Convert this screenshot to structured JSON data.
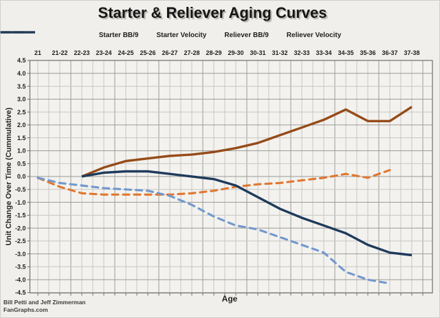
{
  "title": "Starter & Reliever Aging Curves",
  "footer": {
    "line1": "Bill Petti and Jeff Zimmerman",
    "line2": "FanGraphs.com"
  },
  "chart_data": {
    "type": "line",
    "title": "Starter & Reliever Aging Curves",
    "xlabel": "Age",
    "ylabel": "Unit Change Over Time (Cummulative)",
    "ylim": [
      -4.5,
      4.5
    ],
    "ytick_step": 0.5,
    "yticks": [
      4.5,
      4.0,
      3.5,
      3.0,
      2.5,
      2.0,
      1.5,
      1.0,
      0.5,
      0.0,
      -0.5,
      -1.0,
      -1.5,
      -2.0,
      -2.5,
      -3.0,
      -3.5,
      -4.0,
      -4.5
    ],
    "grid": true,
    "legend_position": "top",
    "x_labels_position": "top",
    "categories": [
      "21",
      "21-22",
      "22-23",
      "23-24",
      "24-25",
      "25-26",
      "26-27",
      "27-28",
      "28-29",
      "29-30",
      "30-31",
      "31-32",
      "32-33",
      "33-34",
      "34-35",
      "35-36",
      "36-37",
      "37-38"
    ],
    "series": [
      {
        "key": "starter-bb9",
        "name": "Starter BB/9",
        "style": "dashed",
        "color": "#E2762E",
        "values": [
          -0.05,
          -0.4,
          -0.65,
          -0.7,
          -0.7,
          -0.7,
          -0.7,
          -0.65,
          -0.55,
          -0.4,
          -0.3,
          -0.25,
          -0.15,
          -0.05,
          0.1,
          -0.05,
          0.25,
          null
        ]
      },
      {
        "key": "starter-velocity",
        "name": "Starter Velocity",
        "style": "dashed",
        "color": "#7297CE",
        "values": [
          -0.05,
          -0.25,
          -0.35,
          -0.45,
          -0.5,
          -0.55,
          -0.75,
          -1.1,
          -1.55,
          -1.9,
          -2.05,
          -2.35,
          -2.65,
          -2.95,
          -3.7,
          -4.0,
          -4.15,
          null
        ]
      },
      {
        "key": "reliever-bb9",
        "name": "Reliever BB/9",
        "style": "solid",
        "color": "#964B19",
        "values": [
          null,
          null,
          0.0,
          0.35,
          0.6,
          0.7,
          0.8,
          0.85,
          0.95,
          1.1,
          1.3,
          1.6,
          1.9,
          2.2,
          2.6,
          2.15,
          2.15,
          2.7
        ]
      },
      {
        "key": "reliever-velocity",
        "name": "Reliever Velocity",
        "style": "solid",
        "color": "#1E3B5C",
        "values": [
          null,
          null,
          0.0,
          0.15,
          0.2,
          0.2,
          0.1,
          0.0,
          -0.1,
          -0.35,
          -0.8,
          -1.25,
          -1.6,
          -1.9,
          -2.2,
          -2.65,
          -2.95,
          -3.05
        ]
      }
    ],
    "colors": {
      "background": "#f0efeb",
      "plot_background": "#f3f2ee",
      "grid_minor": "#c6c6c3",
      "grid_major": "#9a9a97",
      "border": "#6f6f6c",
      "text": "#1f1f1f"
    }
  }
}
